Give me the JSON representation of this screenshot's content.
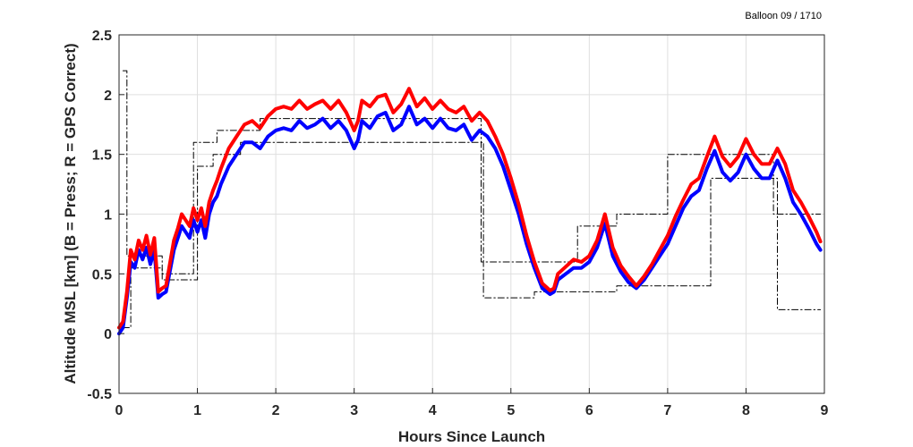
{
  "chart_data": {
    "type": "line",
    "title": "",
    "annotation": "Balloon 09 / 1710",
    "xlabel": "Hours Since Launch",
    "ylabel": "Altitude MSL [km]   (B = Press; R = GPS Correct)",
    "xlim": [
      0,
      9
    ],
    "ylim": [
      -0.5,
      2.5
    ],
    "xticks": [
      "0",
      "1",
      "2",
      "3",
      "4",
      "5",
      "6",
      "7",
      "8",
      "9"
    ],
    "yticks": [
      "-0.5",
      "0",
      "0.5",
      "1",
      "1.5",
      "2",
      "2.5"
    ],
    "grid": true,
    "series": [
      {
        "color": "#0000ff",
        "style": "solid-thick",
        "x": [
          0,
          0.05,
          0.1,
          0.15,
          0.2,
          0.25,
          0.3,
          0.35,
          0.4,
          0.45,
          0.5,
          0.55,
          0.6,
          0.7,
          0.75,
          0.8,
          0.85,
          0.9,
          0.95,
          1.0,
          1.05,
          1.1,
          1.15,
          1.2,
          1.25,
          1.3,
          1.4,
          1.5,
          1.6,
          1.7,
          1.8,
          1.9,
          2.0,
          2.1,
          2.2,
          2.3,
          2.4,
          2.5,
          2.6,
          2.7,
          2.8,
          2.9,
          3.0,
          3.05,
          3.1,
          3.2,
          3.3,
          3.4,
          3.5,
          3.6,
          3.7,
          3.8,
          3.9,
          4.0,
          4.1,
          4.2,
          4.3,
          4.4,
          4.5,
          4.6,
          4.7,
          4.8,
          4.9,
          5.0,
          5.1,
          5.2,
          5.3,
          5.4,
          5.5,
          5.55,
          5.6,
          5.7,
          5.8,
          5.9,
          6.0,
          6.1,
          6.2,
          6.3,
          6.4,
          6.5,
          6.6,
          6.7,
          6.8,
          6.9,
          7.0,
          7.1,
          7.2,
          7.3,
          7.4,
          7.5,
          7.6,
          7.7,
          7.8,
          7.9,
          8.0,
          8.1,
          8.2,
          8.3,
          8.4,
          8.5,
          8.6,
          8.7,
          8.8,
          8.9,
          8.95
        ],
        "y": [
          0.0,
          0.05,
          0.3,
          0.6,
          0.55,
          0.7,
          0.62,
          0.72,
          0.58,
          0.7,
          0.3,
          0.33,
          0.35,
          0.7,
          0.8,
          0.9,
          0.85,
          0.8,
          0.95,
          0.85,
          0.95,
          0.8,
          1.0,
          1.1,
          1.15,
          1.25,
          1.4,
          1.5,
          1.6,
          1.6,
          1.55,
          1.65,
          1.7,
          1.72,
          1.7,
          1.78,
          1.72,
          1.75,
          1.8,
          1.72,
          1.78,
          1.7,
          1.55,
          1.62,
          1.78,
          1.72,
          1.82,
          1.85,
          1.7,
          1.75,
          1.9,
          1.75,
          1.8,
          1.72,
          1.8,
          1.72,
          1.7,
          1.75,
          1.62,
          1.7,
          1.65,
          1.55,
          1.4,
          1.2,
          1.0,
          0.75,
          0.55,
          0.38,
          0.33,
          0.35,
          0.45,
          0.5,
          0.55,
          0.55,
          0.6,
          0.72,
          0.92,
          0.65,
          0.52,
          0.43,
          0.38,
          0.45,
          0.55,
          0.65,
          0.75,
          0.9,
          1.05,
          1.15,
          1.2,
          1.38,
          1.53,
          1.35,
          1.28,
          1.35,
          1.5,
          1.38,
          1.3,
          1.3,
          1.45,
          1.3,
          1.1,
          1.0,
          0.88,
          0.75,
          0.7
        ]
      },
      {
        "color": "#ff0000",
        "style": "solid-thick",
        "x": [
          0,
          0.05,
          0.1,
          0.15,
          0.2,
          0.25,
          0.3,
          0.35,
          0.4,
          0.45,
          0.5,
          0.55,
          0.6,
          0.7,
          0.75,
          0.8,
          0.85,
          0.9,
          0.95,
          1.0,
          1.05,
          1.1,
          1.15,
          1.2,
          1.25,
          1.3,
          1.4,
          1.5,
          1.6,
          1.7,
          1.8,
          1.9,
          2.0,
          2.1,
          2.2,
          2.3,
          2.4,
          2.5,
          2.6,
          2.7,
          2.8,
          2.9,
          3.0,
          3.05,
          3.1,
          3.2,
          3.3,
          3.4,
          3.5,
          3.6,
          3.7,
          3.8,
          3.9,
          4.0,
          4.1,
          4.2,
          4.3,
          4.4,
          4.5,
          4.6,
          4.7,
          4.8,
          4.9,
          5.0,
          5.1,
          5.2,
          5.3,
          5.4,
          5.5,
          5.55,
          5.6,
          5.7,
          5.8,
          5.9,
          6.0,
          6.1,
          6.2,
          6.3,
          6.4,
          6.5,
          6.6,
          6.7,
          6.8,
          6.9,
          7.0,
          7.1,
          7.2,
          7.3,
          7.4,
          7.5,
          7.6,
          7.7,
          7.8,
          7.9,
          8.0,
          8.1,
          8.2,
          8.3,
          8.4,
          8.5,
          8.6,
          8.7,
          8.8,
          8.9,
          8.95
        ],
        "y": [
          0.05,
          0.1,
          0.35,
          0.7,
          0.62,
          0.78,
          0.7,
          0.82,
          0.66,
          0.8,
          0.35,
          0.38,
          0.4,
          0.78,
          0.88,
          1.0,
          0.95,
          0.9,
          1.05,
          0.95,
          1.05,
          0.9,
          1.1,
          1.2,
          1.28,
          1.38,
          1.55,
          1.65,
          1.75,
          1.78,
          1.72,
          1.82,
          1.88,
          1.9,
          1.88,
          1.95,
          1.88,
          1.92,
          1.95,
          1.88,
          1.95,
          1.85,
          1.7,
          1.78,
          1.95,
          1.9,
          1.98,
          2.0,
          1.85,
          1.92,
          2.05,
          1.9,
          1.97,
          1.88,
          1.95,
          1.88,
          1.85,
          1.9,
          1.78,
          1.85,
          1.78,
          1.65,
          1.5,
          1.3,
          1.08,
          0.82,
          0.6,
          0.42,
          0.36,
          0.38,
          0.5,
          0.56,
          0.62,
          0.6,
          0.65,
          0.78,
          1.0,
          0.72,
          0.57,
          0.48,
          0.4,
          0.48,
          0.58,
          0.7,
          0.82,
          0.98,
          1.12,
          1.25,
          1.3,
          1.48,
          1.65,
          1.48,
          1.4,
          1.48,
          1.63,
          1.5,
          1.42,
          1.42,
          1.55,
          1.42,
          1.2,
          1.1,
          0.98,
          0.85,
          0.77
        ]
      },
      {
        "color": "#000000",
        "style": "dash-dot",
        "step": true,
        "x": [
          0.05,
          0.1,
          0.1,
          0.55,
          0.55,
          0.95,
          0.95,
          1.25,
          1.25,
          1.8,
          1.8,
          4.62,
          4.62,
          5.85,
          5.85,
          6.35,
          6.35,
          7.0,
          7.0,
          8.35,
          8.35,
          8.95
        ],
        "y": [
          2.2,
          2.2,
          0.65,
          0.65,
          0.5,
          0.5,
          1.6,
          1.6,
          1.7,
          1.7,
          1.8,
          1.8,
          0.6,
          0.6,
          0.9,
          0.9,
          1.0,
          1.0,
          1.5,
          1.5,
          1.0,
          1.0
        ]
      },
      {
        "color": "#000000",
        "style": "dash-dot",
        "step": true,
        "x": [
          0.05,
          0.15,
          0.15,
          0.55,
          0.55,
          1.0,
          1.0,
          1.2,
          1.2,
          1.55,
          1.55,
          2.05,
          2.05,
          4.65,
          4.65,
          5.3,
          5.3,
          6.35,
          6.35,
          7.55,
          7.55,
          8.4,
          8.4,
          8.95
        ],
        "y": [
          0.05,
          0.05,
          0.55,
          0.55,
          0.45,
          0.45,
          1.4,
          1.4,
          1.5,
          1.5,
          1.6,
          1.6,
          1.6,
          1.6,
          0.3,
          0.3,
          0.35,
          0.35,
          0.4,
          0.4,
          1.3,
          1.3,
          0.2,
          0.2
        ]
      }
    ]
  }
}
